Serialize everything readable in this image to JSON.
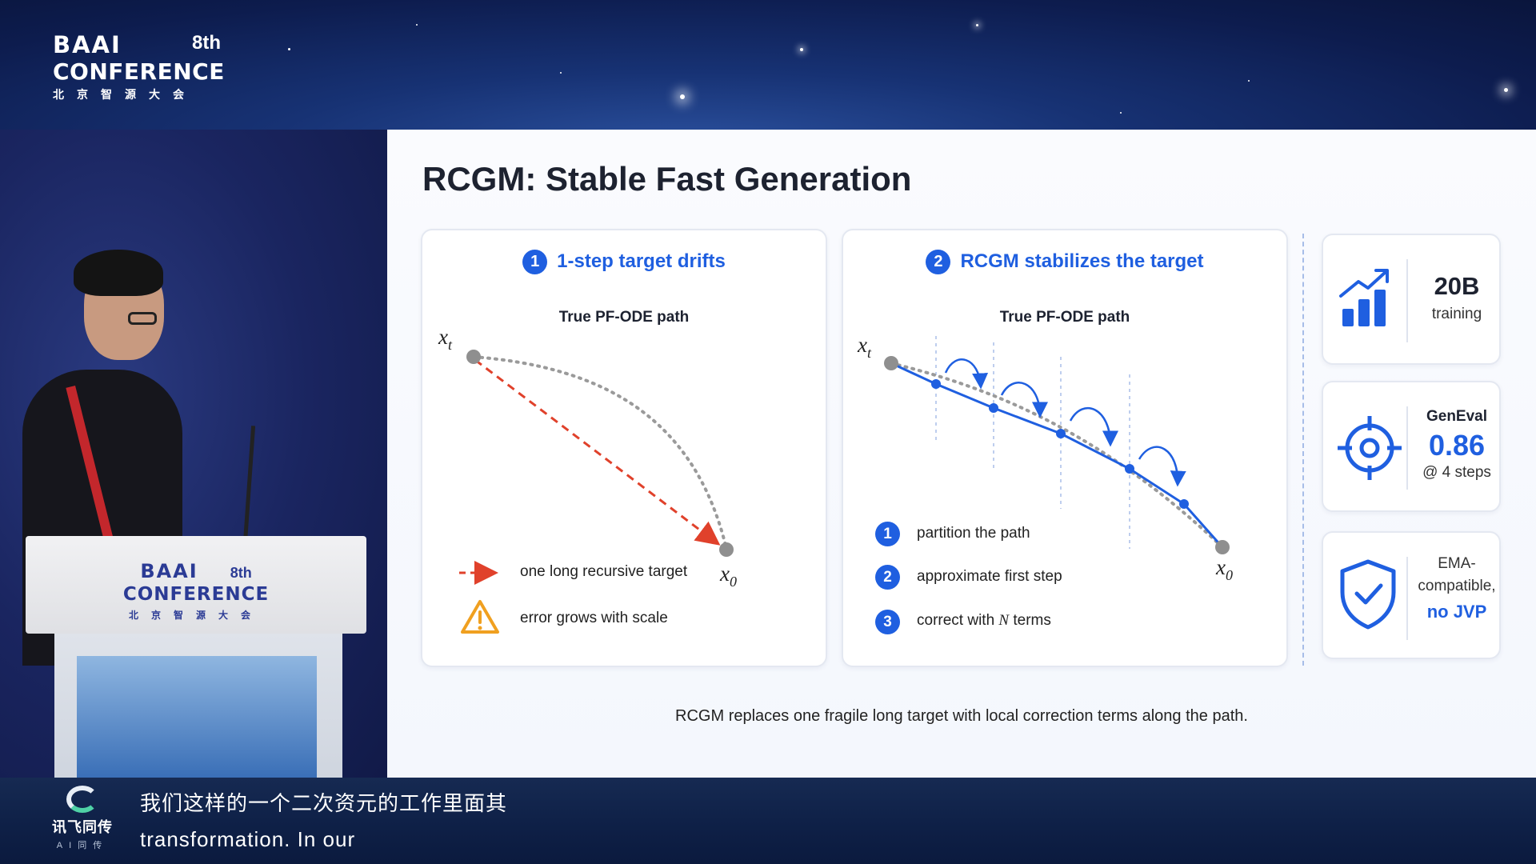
{
  "banner": {
    "logo_wordmark": "BAAI",
    "logo_edition": "8th",
    "logo_conference": "CONFERENCE",
    "logo_chinese": "北京智源大会"
  },
  "podium": {
    "wordmark": "BAAI",
    "edition": "8th",
    "conference": "CONFERENCE",
    "chinese": "北京智源大会"
  },
  "slide": {
    "title": "RCGM: Stable Fast Generation",
    "left_panel": {
      "badge": "1",
      "heading": "1-step target drifts",
      "subheading": "True PF-ODE path",
      "start_label": "x",
      "start_sub": "t",
      "end_label": "x",
      "end_sub": "0",
      "legend_dashed": "one long recursive target",
      "legend_warning": "error grows with scale"
    },
    "right_panel": {
      "badge": "2",
      "heading": "RCGM stabilizes the target",
      "subheading": "True PF-ODE path",
      "start_label": "x",
      "start_sub": "t",
      "end_label": "x",
      "end_sub": "0",
      "steps": [
        {
          "num": "1",
          "text": "partition the path"
        },
        {
          "num": "2",
          "text": "approximate first step"
        },
        {
          "num": "3",
          "text_prefix": "correct with ",
          "text_var": "N",
          "text_suffix": " terms"
        }
      ]
    },
    "stats": [
      {
        "icon": "bar-chart-growth-icon",
        "value": "20B",
        "label": "training"
      },
      {
        "icon": "target-crosshair-icon",
        "label": "GenEval",
        "value": "0.86",
        "note": "@ 4 steps"
      },
      {
        "icon": "shield-check-icon",
        "line1": "EMA-",
        "line2": "compatible,",
        "highlight": "no JVP"
      }
    ],
    "caption": "RCGM replaces one fragile long target with local correction terms along the path.",
    "accent_color": "#1f5fe0",
    "error_color": "#e0412b"
  },
  "subtitles": {
    "brand": "讯飞同传",
    "brand_tag": "AI同传",
    "line_cn": "我们这样的一个二次资元的工作里面其",
    "line_en": "transformation. In our"
  }
}
